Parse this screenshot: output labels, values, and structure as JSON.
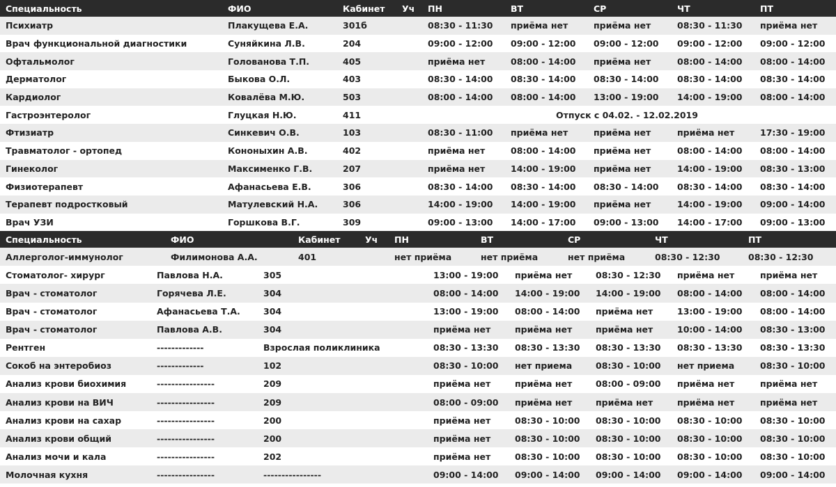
{
  "table1": {
    "headers": [
      "Специальность",
      "ФИО",
      "Кабинет",
      "Уч",
      "ПН",
      "ВТ",
      "СР",
      "ЧТ",
      "ПТ"
    ],
    "rows": [
      {
        "spec": "Психиатр",
        "fio": "Плакущева Е.А.",
        "cab": "301б",
        "uch": "",
        "days": [
          "08:30 - 11:30",
          "приёма нет",
          "приёма нет",
          "08:30 - 11:30",
          "приёма нет"
        ]
      },
      {
        "spec": "Врач функциональной диагностики",
        "fio": "Суняйкина Л.В.",
        "cab": "204",
        "uch": "",
        "days": [
          "09:00 - 12:00",
          "09:00 - 12:00",
          "09:00 - 12:00",
          "09:00 - 12:00",
          "09:00 - 12:00"
        ]
      },
      {
        "spec": "Офтальмолог",
        "fio": "Голованова Т.П.",
        "cab": "405",
        "uch": "",
        "days": [
          "приёма нет",
          "08:00 - 14:00",
          "приёма нет",
          "08:00 - 14:00",
          "08:00 - 14:00"
        ]
      },
      {
        "spec": "Дерматолог",
        "fio": "Быкова О.Л.",
        "cab": "403",
        "uch": "",
        "days": [
          "08:30 - 14:00",
          "08:30 - 14:00",
          "08:30 - 14:00",
          "08:30 - 14:00",
          "08:30 - 14:00"
        ]
      },
      {
        "spec": "Кардиолог",
        "fio": "Ковалёва М.Ю.",
        "cab": "503",
        "uch": "",
        "days": [
          "08:00 - 14:00",
          "08:00 - 14:00",
          "13:00 - 19:00",
          "14:00 - 19:00",
          "08:00 - 14:00"
        ]
      },
      {
        "spec": "Гастроэнтеролог",
        "fio": "Глуцкая Н.Ю.",
        "cab": "411",
        "uch": "",
        "note": "Отпуск с 04.02. - 12.02.2019"
      },
      {
        "spec": "Фтизиатр",
        "fio": "Синкевич О.В.",
        "cab": "103",
        "uch": "",
        "days": [
          "08:30 - 11:00",
          "приёма нет",
          "приёма нет",
          "приёма нет",
          "17:30 - 19:00"
        ]
      },
      {
        "spec": "Травматолог - ортопед",
        "fio": "Кононыхин А.В.",
        "cab": "402",
        "uch": "",
        "days": [
          "приёма нет",
          "08:00 - 14:00",
          "приёма нет",
          "08:00 - 14:00",
          "08:00 - 14:00"
        ]
      },
      {
        "spec": "Гинеколог",
        "fio": "Максименко Г.В.",
        "cab": "207",
        "uch": "",
        "days": [
          "приёма нет",
          "14:00 - 19:00",
          "приёма нет",
          "14:00 - 19:00",
          "08:30 - 13:00"
        ]
      },
      {
        "spec": "Физиотерапевт",
        "fio": "Афанасьева Е.В.",
        "cab": "306",
        "uch": "",
        "days": [
          "08:30 - 14:00",
          "08:30 - 14:00",
          "08:30 - 14:00",
          "08:30 - 14:00",
          "08:30 - 14:00"
        ]
      },
      {
        "spec": "Терапевт подростковый",
        "fio": "Матулевский Н.А.",
        "cab": "306",
        "uch": "",
        "days": [
          "14:00 - 19:00",
          "14:00 - 19:00",
          "приёма нет",
          "14:00 - 19:00",
          "09:00 - 14:00"
        ]
      },
      {
        "spec": "Врач УЗИ",
        "fio": "Горшкова В.Г.",
        "cab": "309",
        "uch": "",
        "days": [
          "09:00 - 13:00",
          "14:00 - 17:00",
          "09:00 - 13:00",
          "14:00 - 17:00",
          "09:00 - 13:00"
        ]
      }
    ]
  },
  "table2": {
    "headers": [
      "Специальность",
      "ФИО",
      "Кабинет",
      "Уч",
      "ПН",
      "ВТ",
      "СР",
      "ЧТ",
      "ПТ"
    ],
    "first_row": {
      "spec": "Аллерголог-иммунолог",
      "fio": "Филимонова А.А.",
      "cab": "401",
      "uch": "",
      "days": [
        "нет приёма",
        "нет приёма",
        "нет приёма",
        "08:30 - 12:30",
        "08:30 - 12:30"
      ]
    },
    "rows": [
      {
        "spec": "Стоматолог- хирург",
        "fio": "Павлова Н.А.",
        "cab": "305",
        "days": [
          "13:00 - 19:00",
          "приёма нет",
          "08:30 - 12:30",
          "приёма нет",
          "приёма нет"
        ]
      },
      {
        "spec": "Врач - стоматолог",
        "fio": "Горячева Л.Е.",
        "cab": "304",
        "days": [
          "08:00 - 14:00",
          "14:00 - 19:00",
          "14:00 - 19:00",
          "08:00 - 14:00",
          "08:00 - 14:00"
        ]
      },
      {
        "spec": "Врач - стоматолог",
        "fio": "Афанасьева Т.А.",
        "cab": "304",
        "days": [
          "13:00 - 19:00",
          "08:00 - 14:00",
          "приёма нет",
          "13:00 - 19:00",
          "08:00 - 14:00"
        ]
      },
      {
        "spec": "Врач - стоматолог",
        "fio": "Павлова А.В.",
        "cab": "304",
        "days": [
          "приёма нет",
          "приёма нет",
          "приёма нет",
          "10:00 - 14:00",
          "08:30 - 13:00"
        ]
      },
      {
        "spec": "Рентген",
        "fio": "-------------",
        "cab": "Взрослая поликлиника",
        "days": [
          "08:30 - 13:30",
          "08:30 - 13:30",
          "08:30 - 13:30",
          "08:30 - 13:30",
          "08:30 - 13:30"
        ]
      },
      {
        "spec": "Сокоб на энтеробиоз",
        "fio": "-------------",
        "cab": "102",
        "days": [
          "08:30 - 10:00",
          "нет приема",
          "08:30 - 10:00",
          "нет приема",
          "08:30 - 10:00"
        ]
      },
      {
        "spec": "Анализ крови биохимия",
        "fio": "----------------",
        "cab": "209",
        "days": [
          "приёма нет",
          "приёма нет",
          "08:00 - 09:00",
          "приёма нет",
          "приёма нет"
        ]
      },
      {
        "spec": "Анализ крови на ВИЧ",
        "fio": "----------------",
        "cab": "209",
        "days": [
          "08:00 - 09:00",
          "приёма нет",
          "приёма нет",
          "приёма нет",
          "приёма нет"
        ]
      },
      {
        "spec": "Анализ крови на сахар",
        "fio": "----------------",
        "cab": "200",
        "days": [
          "приёма нет",
          "08:30 - 10:00",
          "08:30 - 10:00",
          "08:30 - 10:00",
          "08:30 - 10:00"
        ]
      },
      {
        "spec": "Анализ крови общий",
        "fio": "----------------",
        "cab": "200",
        "days": [
          "приёма нет",
          "08:30 - 10:00",
          "08:30 - 10:00",
          "08:30 - 10:00",
          "08:30 - 10:00"
        ]
      },
      {
        "spec": "Анализ мочи и кала",
        "fio": "----------------",
        "cab": "202",
        "days": [
          "приёма нет",
          "08:30 - 10:00",
          "08:30 - 10:00",
          "08:30 - 10:00",
          "08:30 - 10:00"
        ]
      },
      {
        "spec": "Молочная кухня",
        "fio": "----------------",
        "cab": "----------------",
        "days": [
          "09:00 - 14:00",
          "09:00 - 14:00",
          "09:00 - 14:00",
          "09:00 - 14:00",
          "09:00 - 14:00"
        ]
      }
    ]
  }
}
